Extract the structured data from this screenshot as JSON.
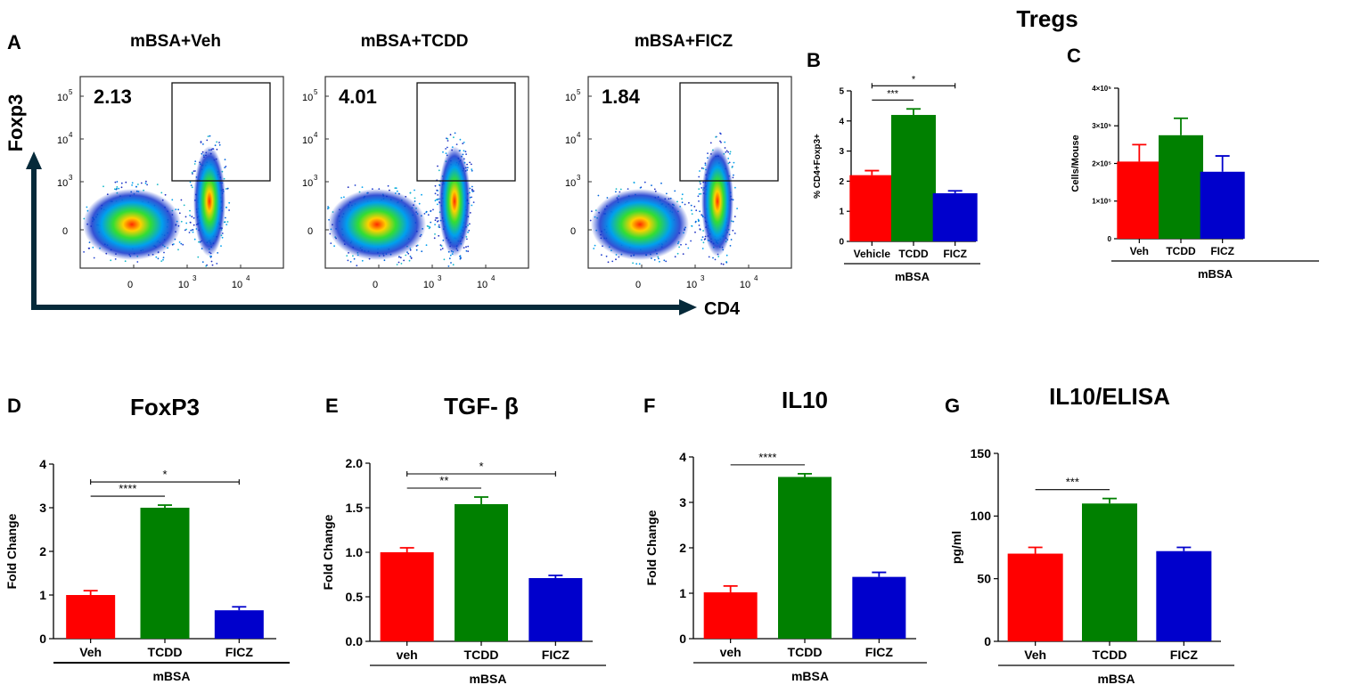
{
  "figure": {
    "main_title": "Tregs",
    "panel_letters": [
      "A",
      "B",
      "C",
      "D",
      "E",
      "F",
      "G"
    ]
  },
  "colors": {
    "red": "#ff0000",
    "green": "#008000",
    "blue": "#0000cc",
    "black": "#000000"
  },
  "flow": {
    "y_axis_label": "Foxp3",
    "x_axis_label": "CD4",
    "tick_labels_y": [
      "10",
      "10",
      "10",
      "0"
    ],
    "tick_exponents_y": [
      "5",
      "4",
      "3",
      ""
    ],
    "tick_labels_x": [
      "0",
      "10",
      "10"
    ],
    "tick_exponents_x": [
      "",
      "3",
      "4"
    ],
    "plots": [
      {
        "title": "mBSA+Veh",
        "percent": "2.13"
      },
      {
        "title": "mBSA+TCDD",
        "percent": "4.01"
      },
      {
        "title": "mBSA+FICZ",
        "percent": "1.84"
      }
    ]
  },
  "chart_data": [
    {
      "id": "B",
      "type": "bar",
      "ylabel": "% CD4+Foxp3+",
      "group_label": "mBSA",
      "categories": [
        "Vehicle",
        "TCDD",
        "FICZ"
      ],
      "values": [
        2.2,
        4.2,
        1.6
      ],
      "errors": [
        0.15,
        0.2,
        0.08
      ],
      "ylim": [
        0,
        5
      ],
      "ticks": [
        0,
        1,
        2,
        3,
        4,
        5
      ],
      "tick_labels": [
        "0",
        "1",
        "2",
        "3",
        "4",
        "5"
      ],
      "significance": [
        {
          "from": 0,
          "to": 1,
          "label": "***"
        },
        {
          "from": 0,
          "to": 2,
          "label": "*"
        }
      ]
    },
    {
      "id": "C",
      "type": "bar",
      "ylabel": "Cells/Mouse",
      "group_label": "mBSA",
      "categories": [
        "Veh",
        "TCDD",
        "FICZ"
      ],
      "values": [
        205000,
        275000,
        178000
      ],
      "errors": [
        45000,
        45000,
        42000
      ],
      "ylim": [
        0,
        400000
      ],
      "ticks": [
        0,
        100000,
        200000,
        300000,
        400000
      ],
      "tick_labels": [
        "0",
        "1×10⁵",
        "2×10⁵",
        "3×10⁵",
        "4×10⁵"
      ],
      "significance": []
    },
    {
      "id": "D",
      "type": "bar",
      "title": "FoxP3",
      "ylabel": "Fold Change",
      "group_label": "mBSA",
      "categories": [
        "Veh",
        "TCDD",
        "FICZ"
      ],
      "values": [
        1.0,
        3.0,
        0.65
      ],
      "errors": [
        0.1,
        0.06,
        0.08
      ],
      "ylim": [
        0,
        4
      ],
      "ticks": [
        0,
        1,
        2,
        3,
        4
      ],
      "tick_labels": [
        "0",
        "1",
        "2",
        "3",
        "4"
      ],
      "significance": [
        {
          "from": 0,
          "to": 1,
          "label": "****"
        },
        {
          "from": 0,
          "to": 2,
          "label": "*"
        }
      ]
    },
    {
      "id": "E",
      "type": "bar",
      "title": "TGF- β",
      "ylabel": "Fold Change",
      "group_label": "mBSA",
      "categories": [
        "veh",
        "TCDD",
        "FICZ"
      ],
      "values": [
        1.0,
        1.54,
        0.71
      ],
      "errors": [
        0.05,
        0.08,
        0.03
      ],
      "ylim": [
        0,
        2
      ],
      "ticks": [
        0,
        0.5,
        1,
        1.5,
        2
      ],
      "tick_labels": [
        "0.0",
        "0.5",
        "1.0",
        "1.5",
        "2.0"
      ],
      "significance": [
        {
          "from": 0,
          "to": 1,
          "label": "**"
        },
        {
          "from": 0,
          "to": 2,
          "label": "*"
        }
      ]
    },
    {
      "id": "F",
      "type": "bar",
      "title": "IL10",
      "ylabel": "Fold Change",
      "group_label": "mBSA",
      "categories": [
        "veh",
        "TCDD",
        "FICZ"
      ],
      "values": [
        1.02,
        3.56,
        1.36
      ],
      "errors": [
        0.14,
        0.07,
        0.1
      ],
      "ylim": [
        0,
        4
      ],
      "ticks": [
        0,
        1,
        2,
        3,
        4
      ],
      "tick_labels": [
        "0",
        "1",
        "2",
        "3",
        "4"
      ],
      "significance": [
        {
          "from": 0,
          "to": 1,
          "label": "****"
        }
      ]
    },
    {
      "id": "G",
      "type": "bar",
      "title": "IL10/ELISA",
      "ylabel": "pg/ml",
      "group_label": "mBSA",
      "categories": [
        "Veh",
        "TCDD",
        "FICZ"
      ],
      "values": [
        70,
        110,
        72
      ],
      "errors": [
        5,
        4,
        3
      ],
      "ylim": [
        0,
        150
      ],
      "ticks": [
        0,
        50,
        100,
        150
      ],
      "tick_labels": [
        "0",
        "50",
        "100",
        "150"
      ],
      "significance": [
        {
          "from": 0,
          "to": 1,
          "label": "***"
        }
      ]
    }
  ]
}
